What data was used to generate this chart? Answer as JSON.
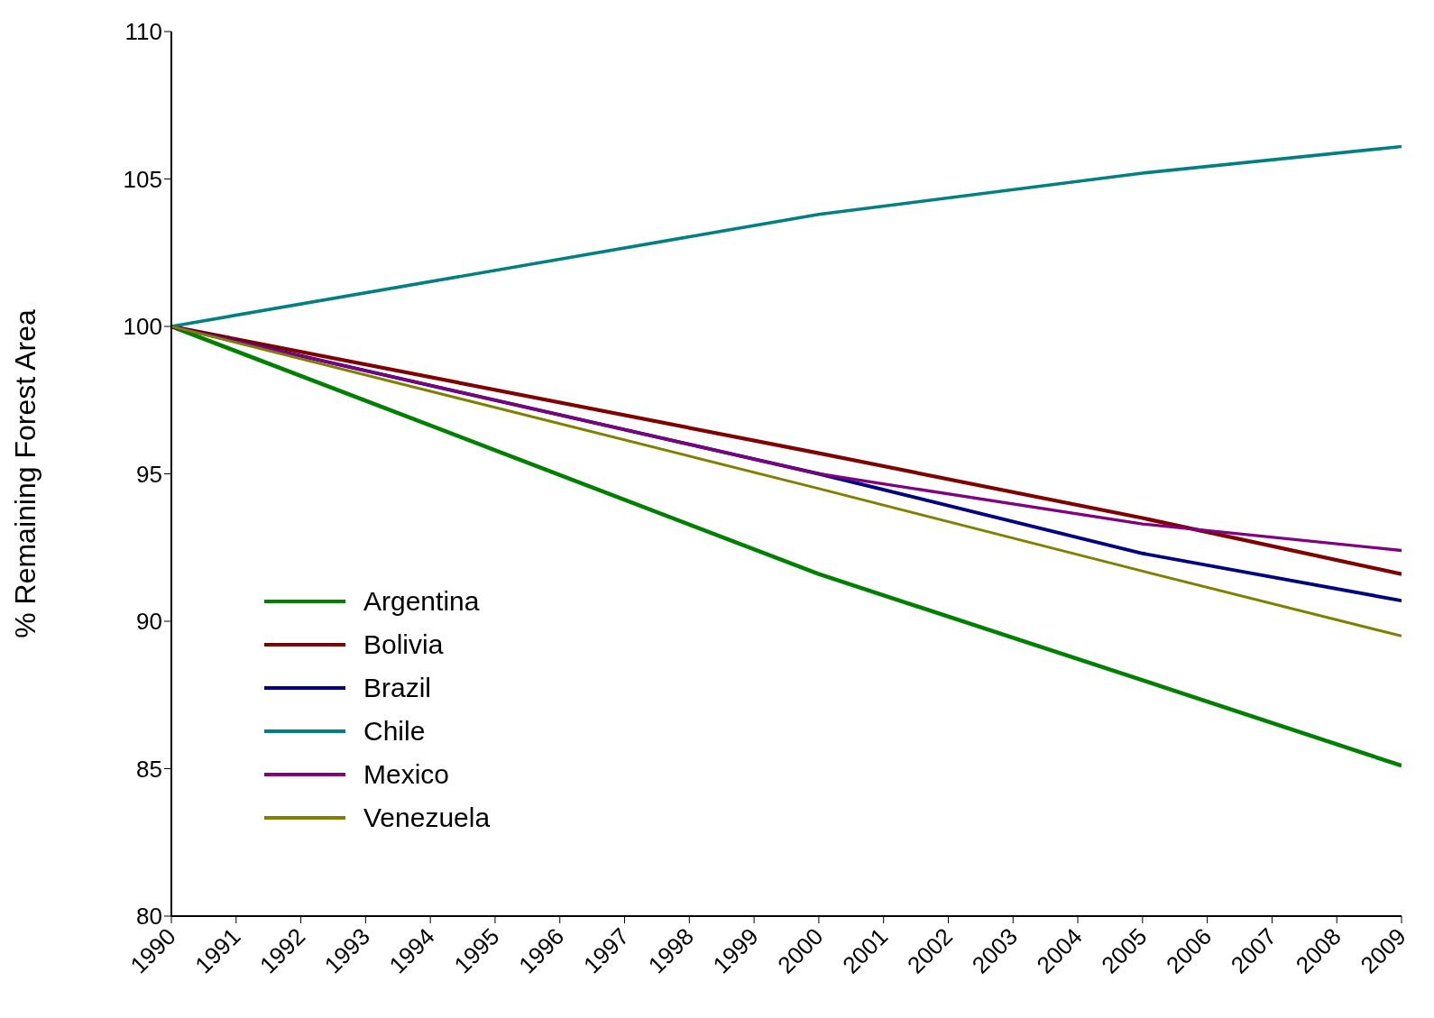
{
  "chart_data": {
    "type": "line",
    "ylabel": "% Remaining Forest Area",
    "xlim": [
      1990,
      2009
    ],
    "xticks": [
      1990,
      1991,
      1992,
      1993,
      1994,
      1995,
      1996,
      1997,
      1998,
      1999,
      2000,
      2001,
      2002,
      2003,
      2004,
      2005,
      2006,
      2007,
      2008,
      2009
    ],
    "ylim": [
      80,
      110
    ],
    "yticks": [
      80,
      85,
      90,
      95,
      100,
      105,
      110
    ],
    "grid": false,
    "legend": "bottom left",
    "marker": "none",
    "line_style": "solid",
    "series": [
      {
        "name": "Argentina",
        "color": "#008000",
        "x": [
          1990,
          2000,
          2005,
          2009
        ],
        "values": [
          100,
          91.6,
          88.0,
          85.1
        ]
      },
      {
        "name": "Bolivia",
        "color": "#800000",
        "x": [
          1990,
          2000,
          2005,
          2009
        ],
        "values": [
          100,
          95.7,
          93.5,
          91.6
        ]
      },
      {
        "name": "Brazil",
        "color": "#000080",
        "x": [
          1990,
          2000,
          2005,
          2009
        ],
        "values": [
          100,
          95.0,
          92.3,
          90.7
        ]
      },
      {
        "name": "Chile",
        "color": "#008080",
        "x": [
          1990,
          2000,
          2005,
          2009
        ],
        "values": [
          100,
          103.8,
          105.2,
          106.1
        ]
      },
      {
        "name": "Mexico",
        "color": "#800080",
        "x": [
          1990,
          2000,
          2005,
          2009
        ],
        "values": [
          100,
          95.0,
          93.3,
          92.4
        ]
      },
      {
        "name": "Venezuela",
        "color": "#808000",
        "x": [
          1990,
          2000,
          2005,
          2009
        ],
        "values": [
          100,
          94.5,
          91.7,
          89.5
        ]
      }
    ]
  }
}
